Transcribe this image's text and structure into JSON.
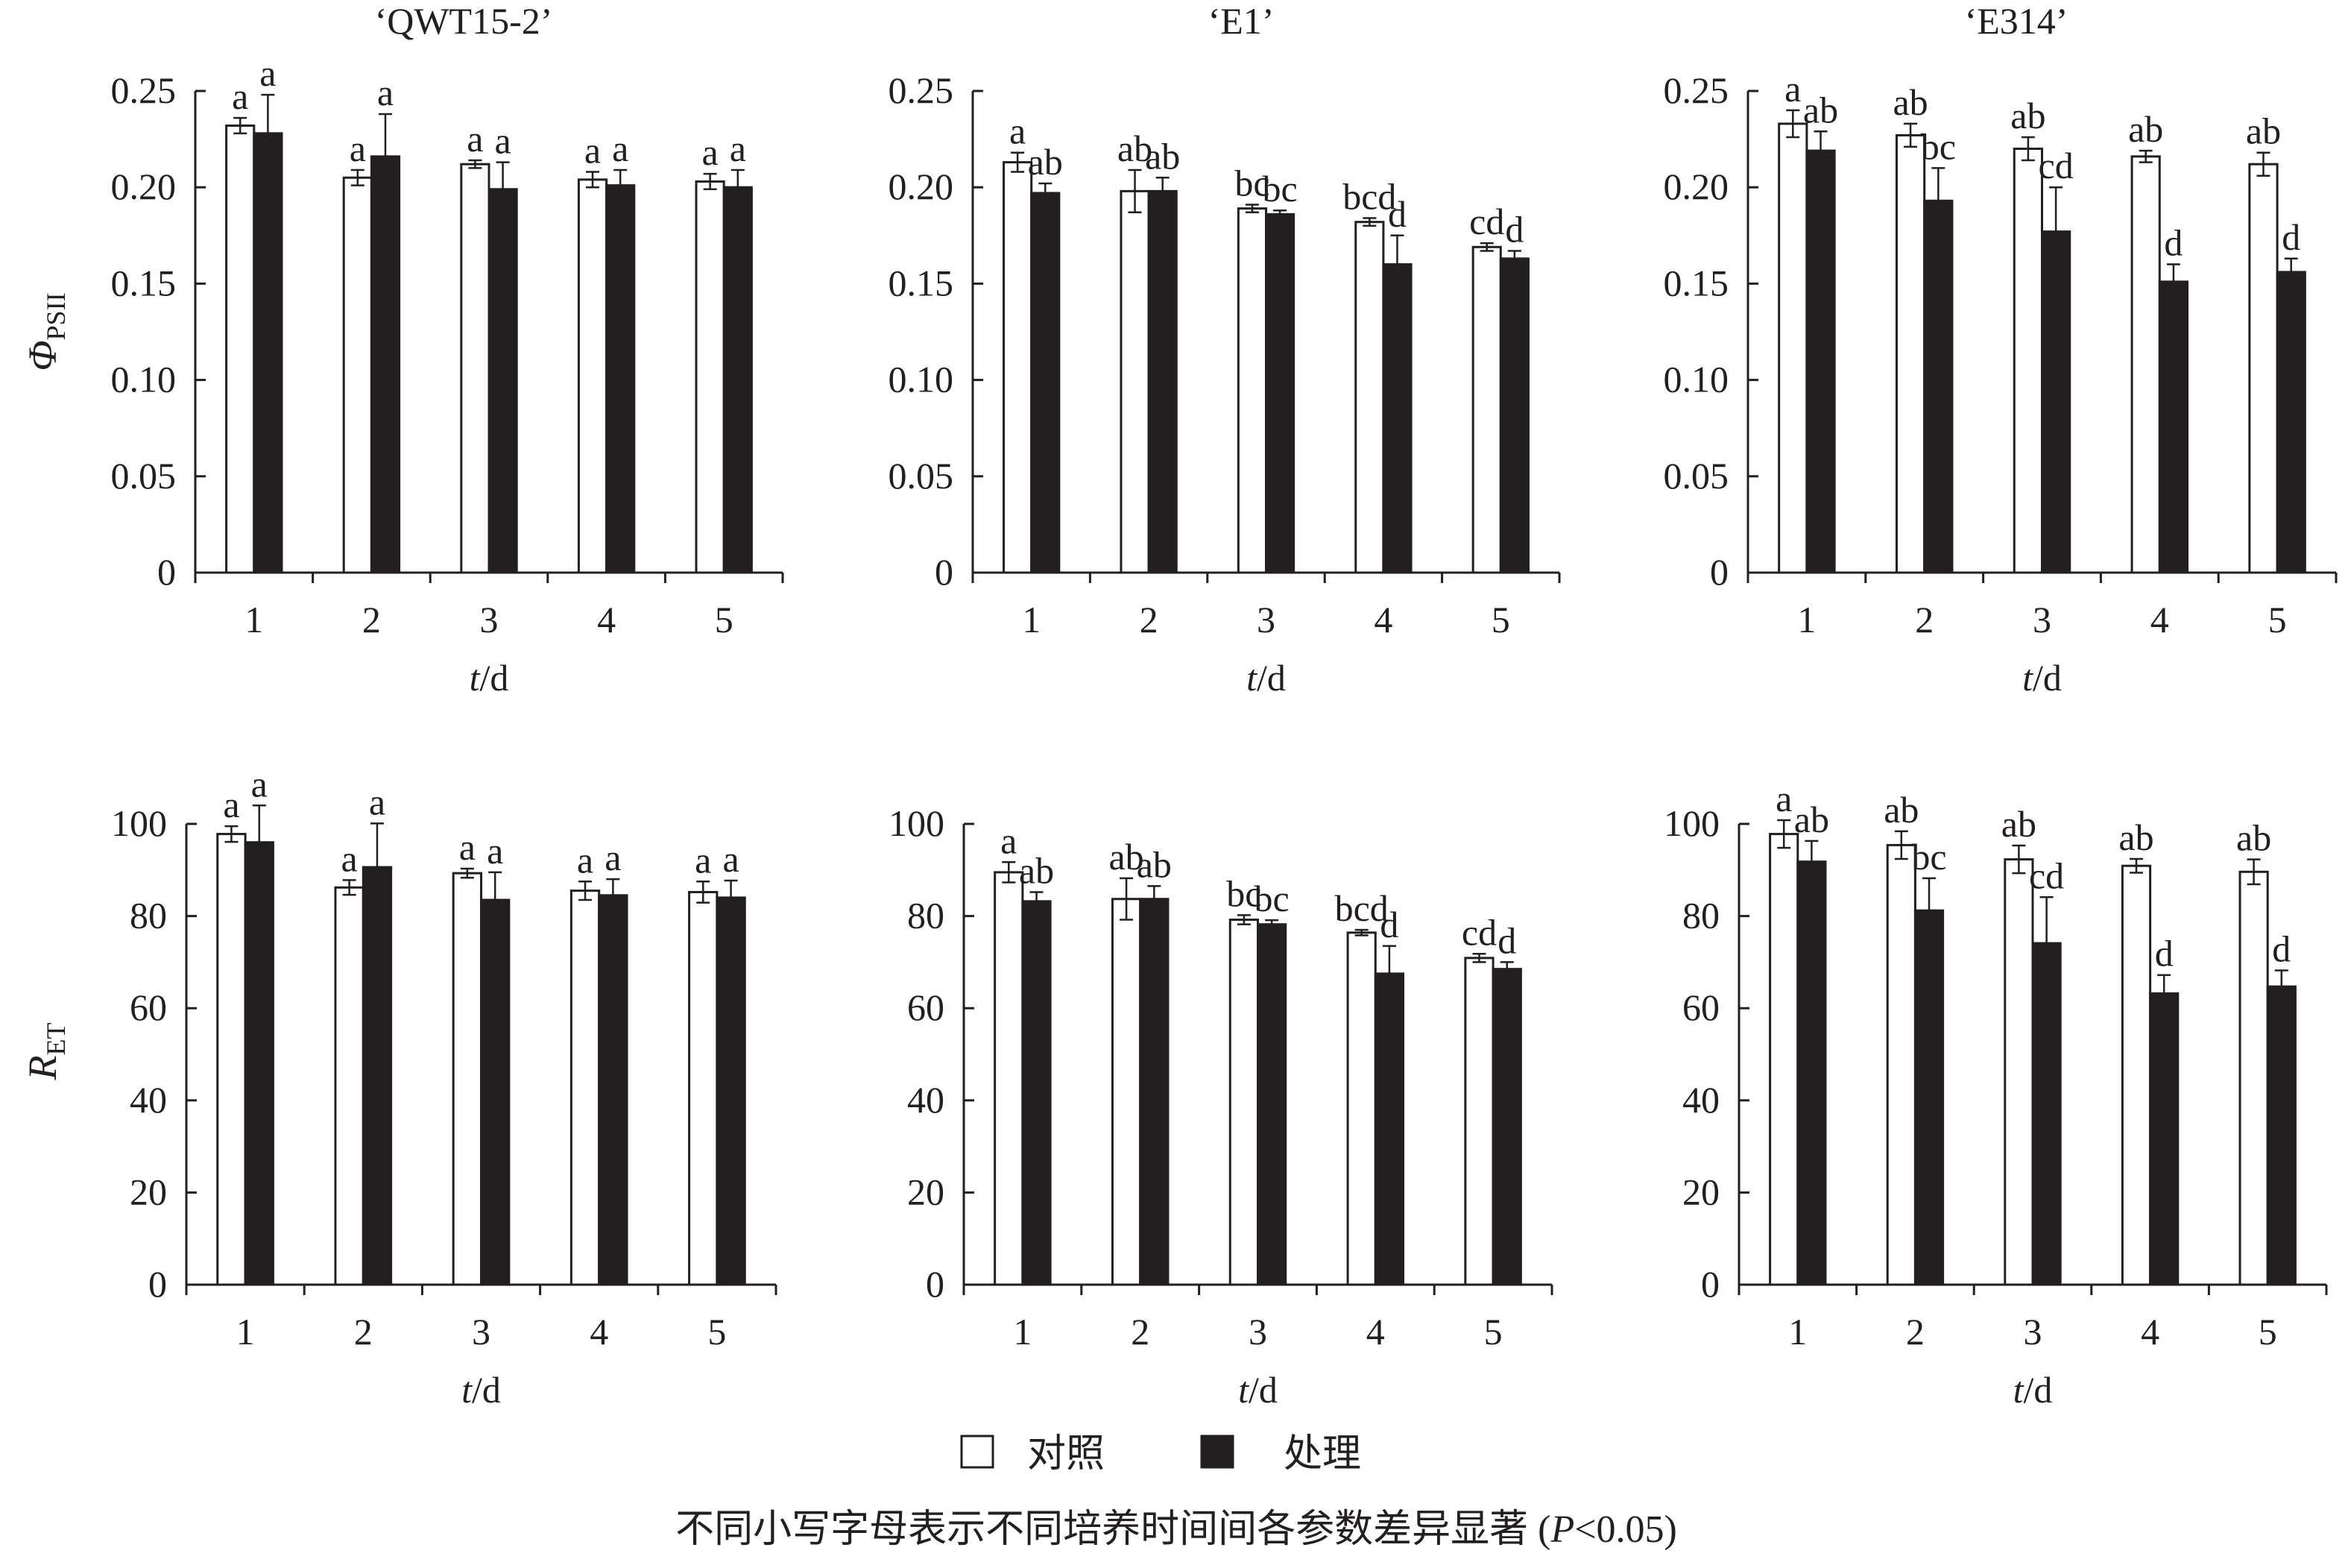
{
  "legend": {
    "control": "对照",
    "treatment": "处理"
  },
  "footnote": {
    "prefix": "不同小写字母表示不同培养时间间各参数差异显著 (",
    "p": "P",
    "suffix": "<0.05)"
  },
  "colors": {
    "control": "#ffffff",
    "treatment": "#231f20",
    "stroke": "#231f20"
  },
  "chart_data": [
    {
      "type": "bar",
      "title": "‘QWT15-2’",
      "ylabel_main": "Φ",
      "ylabel_sub": "PSII",
      "xlabel_var": "t",
      "xlabel_unit": "/d",
      "categories": [
        "1",
        "2",
        "3",
        "4",
        "5"
      ],
      "ylim": [
        0,
        0.25
      ],
      "yticks": [
        {
          "v": 0,
          "label": "0"
        },
        {
          "v": 0.05,
          "label": "0.05"
        },
        {
          "v": 0.1,
          "label": "0.10"
        },
        {
          "v": 0.15,
          "label": "0.15"
        },
        {
          "v": 0.2,
          "label": "0.20"
        },
        {
          "v": 0.25,
          "label": "0.25"
        }
      ],
      "series": [
        {
          "name": "对照",
          "values": [
            0.232,
            0.205,
            0.212,
            0.204,
            0.203
          ],
          "errors": [
            0.004,
            0.004,
            0.002,
            0.004,
            0.004
          ],
          "labels": [
            "a",
            "a",
            "a",
            "a",
            "a"
          ]
        },
        {
          "name": "处理",
          "values": [
            0.228,
            0.216,
            0.199,
            0.201,
            0.2
          ],
          "errors": [
            0.02,
            0.022,
            0.014,
            0.008,
            0.009
          ],
          "labels": [
            "a",
            "a",
            "a",
            "a",
            "a"
          ]
        }
      ]
    },
    {
      "type": "bar",
      "title": "‘E1’",
      "xlabel_var": "t",
      "xlabel_unit": "/d",
      "categories": [
        "1",
        "2",
        "3",
        "4",
        "5"
      ],
      "ylim": [
        0,
        0.25
      ],
      "yticks": [
        {
          "v": 0,
          "label": "0"
        },
        {
          "v": 0.05,
          "label": "0.05"
        },
        {
          "v": 0.1,
          "label": "0.10"
        },
        {
          "v": 0.15,
          "label": "0.15"
        },
        {
          "v": 0.2,
          "label": "0.20"
        },
        {
          "v": 0.25,
          "label": "0.25"
        }
      ],
      "series": [
        {
          "name": "对照",
          "values": [
            0.213,
            0.198,
            0.189,
            0.182,
            0.169
          ],
          "errors": [
            0.005,
            0.011,
            0.002,
            0.002,
            0.002
          ],
          "labels": [
            "a",
            "ab",
            "bc",
            "bcd",
            "cd"
          ]
        },
        {
          "name": "处理",
          "values": [
            0.197,
            0.198,
            0.186,
            0.16,
            0.163
          ],
          "errors": [
            0.005,
            0.007,
            0.002,
            0.015,
            0.004
          ],
          "labels": [
            "ab",
            "ab",
            "bc",
            "d",
            "d"
          ]
        }
      ]
    },
    {
      "type": "bar",
      "title": "‘E314’",
      "xlabel_var": "t",
      "xlabel_unit": "/d",
      "categories": [
        "1",
        "2",
        "3",
        "4",
        "5"
      ],
      "ylim": [
        0,
        0.25
      ],
      "yticks": [
        {
          "v": 0,
          "label": "0"
        },
        {
          "v": 0.05,
          "label": "0.05"
        },
        {
          "v": 0.1,
          "label": "0.10"
        },
        {
          "v": 0.15,
          "label": "0.15"
        },
        {
          "v": 0.2,
          "label": "0.20"
        },
        {
          "v": 0.25,
          "label": "0.25"
        }
      ],
      "series": [
        {
          "name": "对照",
          "values": [
            0.233,
            0.227,
            0.22,
            0.216,
            0.212
          ],
          "errors": [
            0.007,
            0.006,
            0.006,
            0.003,
            0.006
          ],
          "labels": [
            "a",
            "ab",
            "ab",
            "ab",
            "ab"
          ]
        },
        {
          "name": "处理",
          "values": [
            0.219,
            0.193,
            0.177,
            0.151,
            0.156
          ],
          "errors": [
            0.01,
            0.017,
            0.023,
            0.009,
            0.007
          ],
          "labels": [
            "ab",
            "bc",
            "cd",
            "d",
            "d"
          ]
        }
      ]
    },
    {
      "type": "bar",
      "ylabel_main": "R",
      "ylabel_sub": "ET",
      "xlabel_var": "t",
      "xlabel_unit": "/d",
      "categories": [
        "1",
        "2",
        "3",
        "4",
        "5"
      ],
      "ylim": [
        0,
        100
      ],
      "yticks": [
        {
          "v": 0,
          "label": "0"
        },
        {
          "v": 20,
          "label": "20"
        },
        {
          "v": 40,
          "label": "40"
        },
        {
          "v": 60,
          "label": "60"
        },
        {
          "v": 80,
          "label": "80"
        },
        {
          "v": 100,
          "label": "100"
        }
      ],
      "series": [
        {
          "name": "对照",
          "values": [
            97.8,
            86.2,
            89.3,
            85.5,
            85.2
          ],
          "errors": [
            1.7,
            1.6,
            1.0,
            2.0,
            2.3
          ],
          "labels": [
            "a",
            "a",
            "a",
            "a",
            "a"
          ]
        },
        {
          "name": "处理",
          "values": [
            96.0,
            90.6,
            83.5,
            84.5,
            84.0
          ],
          "errors": [
            8.0,
            9.5,
            6.0,
            3.5,
            3.7
          ],
          "labels": [
            "a",
            "a",
            "a",
            "a",
            "a"
          ]
        }
      ]
    },
    {
      "type": "bar",
      "xlabel_var": "t",
      "xlabel_unit": "/d",
      "categories": [
        "1",
        "2",
        "3",
        "4",
        "5"
      ],
      "ylim": [
        0,
        100
      ],
      "yticks": [
        {
          "v": 0,
          "label": "0"
        },
        {
          "v": 20,
          "label": "20"
        },
        {
          "v": 40,
          "label": "40"
        },
        {
          "v": 60,
          "label": "60"
        },
        {
          "v": 80,
          "label": "80"
        },
        {
          "v": 100,
          "label": "100"
        }
      ],
      "series": [
        {
          "name": "对照",
          "values": [
            89.5,
            83.7,
            79.2,
            76.4,
            70.9
          ],
          "errors": [
            2.2,
            4.5,
            1.0,
            0.6,
            0.9
          ],
          "labels": [
            "a",
            "ab",
            "bc",
            "bcd",
            "cd"
          ]
        },
        {
          "name": "处理",
          "values": [
            83.2,
            83.7,
            78.2,
            67.5,
            68.5
          ],
          "errors": [
            2.0,
            2.8,
            0.9,
            6.0,
            1.5
          ],
          "labels": [
            "ab",
            "ab",
            "bc",
            "d",
            "d"
          ]
        }
      ]
    },
    {
      "type": "bar",
      "xlabel_var": "t",
      "xlabel_unit": "/d",
      "categories": [
        "1",
        "2",
        "3",
        "4",
        "5"
      ],
      "ylim": [
        0,
        100
      ],
      "yticks": [
        {
          "v": 0,
          "label": "0"
        },
        {
          "v": 20,
          "label": "20"
        },
        {
          "v": 40,
          "label": "40"
        },
        {
          "v": 60,
          "label": "60"
        },
        {
          "v": 80,
          "label": "80"
        },
        {
          "v": 100,
          "label": "100"
        }
      ],
      "series": [
        {
          "name": "对照",
          "values": [
            97.8,
            95.4,
            92.3,
            90.9,
            89.6
          ],
          "errors": [
            3.0,
            3.0,
            3.0,
            1.5,
            2.7
          ],
          "labels": [
            "a",
            "ab",
            "ab",
            "ab",
            "ab"
          ]
        },
        {
          "name": "处理",
          "values": [
            91.8,
            81.2,
            74.1,
            63.2,
            64.7
          ],
          "errors": [
            4.5,
            7.0,
            10.0,
            4.0,
            3.5
          ],
          "labels": [
            "ab",
            "bc",
            "cd",
            "d",
            "d"
          ]
        }
      ]
    }
  ]
}
